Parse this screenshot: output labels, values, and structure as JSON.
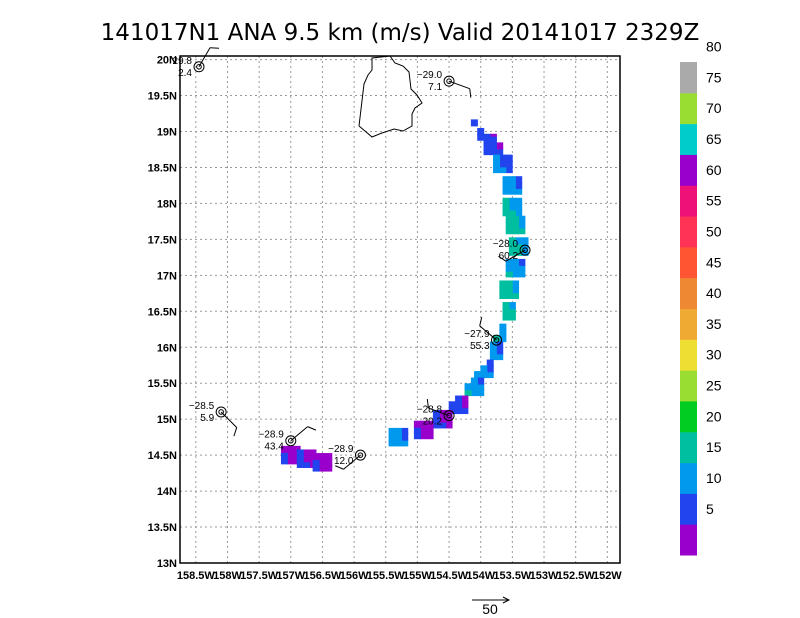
{
  "title": "141017N1 ANA 9.5 km (m/s) Valid 20141017  2329Z",
  "reference_vector": {
    "label": "50"
  },
  "chart_data": {
    "type": "heatmap",
    "title": "141017N1 ANA 9.5 km (m/s) Valid 20141017  2329Z",
    "x_ticks": [
      {
        "value": 158.5,
        "label": "158.5W"
      },
      {
        "value": 158,
        "label": "158W"
      },
      {
        "value": 157.5,
        "label": "157.5W"
      },
      {
        "value": 157,
        "label": "157W"
      },
      {
        "value": 156.5,
        "label": "156.5W"
      },
      {
        "value": 156,
        "label": "156W"
      },
      {
        "value": 155.5,
        "label": "155.5W"
      },
      {
        "value": 155,
        "label": "155W"
      },
      {
        "value": 154.5,
        "label": "154.5W"
      },
      {
        "value": 154,
        "label": "154W"
      },
      {
        "value": 153.5,
        "label": "153.5W"
      },
      {
        "value": 153,
        "label": "153W"
      },
      {
        "value": 152.5,
        "label": "152.5W"
      },
      {
        "value": 152,
        "label": "152W"
      }
    ],
    "y_ticks": [
      {
        "value": 20,
        "label": "20N"
      },
      {
        "value": 19.5,
        "label": "19.5N"
      },
      {
        "value": 19,
        "label": "19N"
      },
      {
        "value": 18.5,
        "label": "18.5N"
      },
      {
        "value": 18,
        "label": "18N"
      },
      {
        "value": 17.5,
        "label": "17.5N"
      },
      {
        "value": 17,
        "label": "17N"
      },
      {
        "value": 16.5,
        "label": "16.5N"
      },
      {
        "value": 16,
        "label": "16N"
      },
      {
        "value": 15.5,
        "label": "15.5N"
      },
      {
        "value": 15,
        "label": "15N"
      },
      {
        "value": 14.5,
        "label": "14.5N"
      },
      {
        "value": 14,
        "label": "14N"
      },
      {
        "value": 13.5,
        "label": "13.5N"
      },
      {
        "value": 13,
        "label": "13N"
      }
    ],
    "xlim": [
      158.75,
      151.8
    ],
    "ylim": [
      13,
      20.05
    ],
    "grid": true,
    "colorbar": {
      "colors": [
        "#9900cc",
        "#2244ee",
        "#0099ee",
        "#00bfa0",
        "#00cc22",
        "#99dd33",
        "#eedd33",
        "#eeaa33",
        "#ee8833",
        "#ff5533",
        "#ff3355",
        "#ee1177",
        "#9900cc",
        "#00cccc",
        "#99dd33",
        "#aaaaaa"
      ],
      "labels": [
        {
          "value": 5,
          "label": "5"
        },
        {
          "value": 10,
          "label": "10"
        },
        {
          "value": 15,
          "label": "15"
        },
        {
          "value": 20,
          "label": "20"
        },
        {
          "value": 25,
          "label": "25"
        },
        {
          "value": 30,
          "label": "30"
        },
        {
          "value": 35,
          "label": "35"
        },
        {
          "value": 40,
          "label": "40"
        },
        {
          "value": 45,
          "label": "45"
        },
        {
          "value": 50,
          "label": "50"
        },
        {
          "value": 55,
          "label": "55"
        },
        {
          "value": 60,
          "label": "60"
        },
        {
          "value": 65,
          "label": "65"
        },
        {
          "value": 70,
          "label": "70"
        },
        {
          "value": 75,
          "label": "75"
        },
        {
          "value": 80,
          "label": "80"
        }
      ]
    },
    "swath": {
      "center_lon": 155.55,
      "center_lat": 16.8,
      "inner_radius_deg": 2.05,
      "outer_radius_deg": 2.6,
      "lat_range": [
        14.35,
        19.5
      ]
    },
    "wind_cells": [
      {
        "lon": 154.1,
        "lat": 19.35,
        "speed": 4
      },
      {
        "lon": 154.0,
        "lat": 19.2,
        "speed": 3
      },
      {
        "lon": 153.9,
        "lat": 19.0,
        "speed": 4
      },
      {
        "lon": 153.8,
        "lat": 18.8,
        "speed": 6
      },
      {
        "lon": 153.65,
        "lat": 18.55,
        "speed": 9
      },
      {
        "lon": 153.5,
        "lat": 18.25,
        "speed": 11
      },
      {
        "lon": 153.5,
        "lat": 17.95,
        "speed": 14
      },
      {
        "lon": 153.45,
        "lat": 17.7,
        "speed": 16
      },
      {
        "lon": 153.4,
        "lat": 17.4,
        "speed": 15
      },
      {
        "lon": 153.45,
        "lat": 17.1,
        "speed": 12
      },
      {
        "lon": 153.55,
        "lat": 16.8,
        "speed": 16
      },
      {
        "lon": 153.6,
        "lat": 16.5,
        "speed": 17
      },
      {
        "lon": 153.75,
        "lat": 16.2,
        "speed": 14
      },
      {
        "lon": 153.8,
        "lat": 15.95,
        "speed": 11
      },
      {
        "lon": 153.95,
        "lat": 15.7,
        "speed": 11
      },
      {
        "lon": 154.1,
        "lat": 15.45,
        "speed": 12
      },
      {
        "lon": 154.35,
        "lat": 15.2,
        "speed": 6
      },
      {
        "lon": 154.6,
        "lat": 15.0,
        "speed": 4
      },
      {
        "lon": 154.9,
        "lat": 14.85,
        "speed": 3
      },
      {
        "lon": 155.3,
        "lat": 14.75,
        "speed": 11
      },
      {
        "lon": 157.0,
        "lat": 14.5,
        "speed": 3
      },
      {
        "lon": 156.75,
        "lat": 14.45,
        "speed": 4
      },
      {
        "lon": 156.5,
        "lat": 14.4,
        "speed": 3
      }
    ],
    "stations": [
      {
        "lon": 158.45,
        "lat": 19.9,
        "temp": "29.8",
        "speed": "2.4"
      },
      {
        "lon": 154.5,
        "lat": 19.7,
        "temp": "−29.0",
        "speed": "7.1"
      },
      {
        "lon": 153.3,
        "lat": 17.35,
        "temp": "−28.0",
        "speed": "60.2"
      },
      {
        "lon": 153.75,
        "lat": 16.1,
        "temp": "−27.9",
        "speed": "55.3"
      },
      {
        "lon": 154.5,
        "lat": 15.05,
        "temp": "−28.8",
        "speed": "20.2"
      },
      {
        "lon": 158.1,
        "lat": 15.1,
        "temp": "−28.5",
        "speed": "5.9"
      },
      {
        "lon": 157.0,
        "lat": 14.7,
        "temp": "−28.9",
        "speed": "43.4"
      },
      {
        "lon": 155.9,
        "lat": 14.5,
        "temp": "−28.9",
        "speed": "12.0"
      }
    ]
  }
}
